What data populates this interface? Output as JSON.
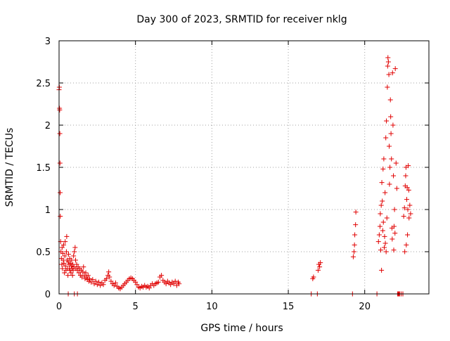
{
  "colors": {
    "series": "#e00000",
    "axis": "#000000",
    "grid": "#a0a0a0"
  },
  "chart_data": {
    "type": "scatter",
    "title": "Day 300 of 2023, SRMTID for receiver nklg",
    "xlabel": "GPS time / hours",
    "ylabel": "SRMTID / TECUs",
    "xlim": [
      0,
      24.2
    ],
    "ylim": [
      0,
      3
    ],
    "xticks": [
      0,
      5,
      10,
      15,
      20
    ],
    "yticks": [
      0,
      0.5,
      1,
      1.5,
      2,
      2.5,
      3
    ],
    "xtick_labels": [
      "0",
      "5",
      "10",
      "15",
      "20"
    ],
    "ytick_labels": [
      "0",
      "0.5",
      "1",
      "1.5",
      "2",
      "2.5",
      "3"
    ],
    "grid": true,
    "marker": "+",
    "series": [
      {
        "name": "SRMTID",
        "points": [
          [
            0.0,
            2.42
          ],
          [
            0.02,
            2.45
          ],
          [
            0.03,
            2.2
          ],
          [
            0.04,
            2.18
          ],
          [
            0.05,
            1.9
          ],
          [
            0.06,
            1.55
          ],
          [
            0.07,
            1.2
          ],
          [
            0.08,
            0.92
          ],
          [
            0.1,
            0.62
          ],
          [
            0.12,
            0.5
          ],
          [
            0.15,
            0.42
          ],
          [
            0.18,
            0.35
          ],
          [
            0.2,
            0.55
          ],
          [
            0.22,
            0.3
          ],
          [
            0.25,
            0.48
          ],
          [
            0.28,
            0.4
          ],
          [
            0.3,
            0.58
          ],
          [
            0.32,
            0.36
          ],
          [
            0.35,
            0.25
          ],
          [
            0.38,
            0.45
          ],
          [
            0.4,
            0.62
          ],
          [
            0.42,
            0.33
          ],
          [
            0.45,
            0.28
          ],
          [
            0.48,
            0.5
          ],
          [
            0.5,
            0.68
          ],
          [
            0.52,
            0.4
          ],
          [
            0.55,
            0.3
          ],
          [
            0.58,
            0.22
          ],
          [
            0.6,
            0.38
          ],
          [
            0.62,
            0.47
          ],
          [
            0.65,
            0.35
          ],
          [
            0.68,
            0.3
          ],
          [
            0.7,
            0.42
          ],
          [
            0.72,
            0.28
          ],
          [
            0.75,
            0.36
          ],
          [
            0.78,
            0.25
          ],
          [
            0.8,
            0.33
          ],
          [
            0.82,
            0.4
          ],
          [
            0.85,
            0.3
          ],
          [
            0.88,
            0.22
          ],
          [
            0.9,
            0.35
          ],
          [
            0.92,
            0.28
          ],
          [
            0.95,
            0.45
          ],
          [
            0.98,
            0.32
          ],
          [
            1.0,
            0.5
          ],
          [
            1.05,
            0.55
          ],
          [
            1.08,
            0.4
          ],
          [
            1.1,
            0.3
          ],
          [
            1.15,
            0.35
          ],
          [
            1.2,
            0.28
          ],
          [
            1.25,
            0.32
          ],
          [
            1.3,
            0.25
          ],
          [
            1.35,
            0.3
          ],
          [
            1.4,
            0.22
          ],
          [
            1.45,
            0.28
          ],
          [
            1.5,
            0.2
          ],
          [
            1.55,
            0.26
          ],
          [
            1.6,
            0.32
          ],
          [
            1.65,
            0.22
          ],
          [
            1.7,
            0.18
          ],
          [
            1.75,
            0.25
          ],
          [
            1.8,
            0.2
          ],
          [
            1.85,
            0.17
          ],
          [
            1.9,
            0.22
          ],
          [
            1.95,
            0.15
          ],
          [
            2.0,
            0.18
          ],
          [
            2.1,
            0.14
          ],
          [
            2.2,
            0.17
          ],
          [
            2.3,
            0.12
          ],
          [
            2.4,
            0.15
          ],
          [
            2.5,
            0.11
          ],
          [
            2.6,
            0.14
          ],
          [
            2.7,
            0.1
          ],
          [
            2.8,
            0.13
          ],
          [
            2.9,
            0.11
          ],
          [
            3.0,
            0.16
          ],
          [
            3.1,
            0.18
          ],
          [
            3.2,
            0.22
          ],
          [
            3.25,
            0.26
          ],
          [
            3.3,
            0.2
          ],
          [
            3.4,
            0.15
          ],
          [
            3.5,
            0.12
          ],
          [
            3.6,
            0.1
          ],
          [
            3.7,
            0.13
          ],
          [
            3.8,
            0.09
          ],
          [
            3.9,
            0.07
          ],
          [
            4.0,
            0.06
          ],
          [
            4.1,
            0.08
          ],
          [
            4.2,
            0.1
          ],
          [
            4.3,
            0.12
          ],
          [
            4.4,
            0.14
          ],
          [
            4.5,
            0.16
          ],
          [
            4.6,
            0.18
          ],
          [
            4.7,
            0.19
          ],
          [
            4.8,
            0.18
          ],
          [
            4.9,
            0.16
          ],
          [
            5.0,
            0.14
          ],
          [
            5.1,
            0.11
          ],
          [
            5.2,
            0.08
          ],
          [
            5.3,
            0.07
          ],
          [
            5.4,
            0.09
          ],
          [
            5.5,
            0.08
          ],
          [
            5.6,
            0.1
          ],
          [
            5.7,
            0.08
          ],
          [
            5.8,
            0.09
          ],
          [
            5.9,
            0.07
          ],
          [
            6.0,
            0.1
          ],
          [
            6.1,
            0.12
          ],
          [
            6.2,
            0.1
          ],
          [
            6.3,
            0.12
          ],
          [
            6.4,
            0.13
          ],
          [
            6.5,
            0.14
          ],
          [
            6.6,
            0.2
          ],
          [
            6.7,
            0.22
          ],
          [
            6.8,
            0.16
          ],
          [
            6.9,
            0.14
          ],
          [
            7.0,
            0.12
          ],
          [
            7.1,
            0.15
          ],
          [
            7.2,
            0.13
          ],
          [
            7.3,
            0.11
          ],
          [
            7.4,
            0.14
          ],
          [
            7.5,
            0.12
          ],
          [
            7.6,
            0.15
          ],
          [
            7.7,
            0.1
          ],
          [
            7.8,
            0.14
          ],
          [
            7.85,
            0.12
          ],
          [
            0.6,
            0.0
          ],
          [
            1.0,
            0.0
          ],
          [
            1.2,
            0.0
          ],
          [
            16.5,
            0.0
          ],
          [
            16.6,
            0.18
          ],
          [
            16.65,
            0.2
          ],
          [
            16.9,
            0.0
          ],
          [
            16.95,
            0.28
          ],
          [
            17.0,
            0.35
          ],
          [
            17.05,
            0.32
          ],
          [
            17.1,
            0.37
          ],
          [
            19.2,
            0.0
          ],
          [
            19.25,
            0.44
          ],
          [
            19.3,
            0.5
          ],
          [
            19.33,
            0.58
          ],
          [
            19.35,
            0.7
          ],
          [
            19.4,
            0.82
          ],
          [
            19.42,
            0.97
          ],
          [
            20.8,
            0.0
          ],
          [
            20.9,
            0.62
          ],
          [
            20.95,
            0.7
          ],
          [
            21.0,
            0.8
          ],
          [
            21.02,
            0.95
          ],
          [
            21.05,
            0.52
          ],
          [
            21.08,
            1.05
          ],
          [
            21.1,
            0.28
          ],
          [
            21.12,
            1.32
          ],
          [
            21.15,
            1.1
          ],
          [
            21.18,
            0.75
          ],
          [
            21.2,
            1.48
          ],
          [
            21.22,
            0.85
          ],
          [
            21.25,
            1.6
          ],
          [
            21.28,
            0.55
          ],
          [
            21.3,
            0.68
          ],
          [
            21.33,
            1.2
          ],
          [
            21.35,
            0.6
          ],
          [
            21.38,
            1.85
          ],
          [
            21.4,
            0.5
          ],
          [
            21.42,
            2.05
          ],
          [
            21.45,
            0.9
          ],
          [
            21.48,
            2.45
          ],
          [
            21.5,
            2.7
          ],
          [
            21.52,
            2.8
          ],
          [
            21.55,
            2.75
          ],
          [
            21.58,
            2.6
          ],
          [
            21.6,
            1.75
          ],
          [
            21.62,
            1.3
          ],
          [
            21.65,
            1.5
          ],
          [
            21.68,
            2.3
          ],
          [
            21.7,
            2.1
          ],
          [
            21.72,
            1.9
          ],
          [
            21.75,
            1.6
          ],
          [
            21.78,
            0.78
          ],
          [
            21.8,
            0.65
          ],
          [
            21.82,
            2.62
          ],
          [
            21.85,
            2.0
          ],
          [
            21.88,
            1.4
          ],
          [
            21.9,
            0.52
          ],
          [
            21.92,
            0.8
          ],
          [
            21.95,
            1.0
          ],
          [
            21.98,
            0.72
          ],
          [
            22.0,
            2.67
          ],
          [
            22.05,
            1.55
          ],
          [
            22.1,
            1.25
          ],
          [
            22.15,
            0.0
          ],
          [
            22.2,
            0.0
          ],
          [
            22.25,
            0.0
          ],
          [
            22.3,
            0.0
          ],
          [
            22.4,
            0.0
          ],
          [
            22.5,
            0.0
          ],
          [
            22.55,
            0.92
          ],
          [
            22.6,
            1.02
          ],
          [
            22.62,
            0.5
          ],
          [
            22.65,
            1.28
          ],
          [
            22.68,
            1.4
          ],
          [
            22.7,
            1.5
          ],
          [
            22.72,
            0.58
          ],
          [
            22.75,
            1.12
          ],
          [
            22.78,
            1.26
          ],
          [
            22.8,
            0.7
          ],
          [
            22.82,
            1.0
          ],
          [
            22.85,
            1.52
          ],
          [
            22.88,
            1.23
          ],
          [
            22.9,
            0.9
          ],
          [
            22.95,
            1.05
          ],
          [
            23.0,
            0.95
          ]
        ]
      }
    ]
  }
}
